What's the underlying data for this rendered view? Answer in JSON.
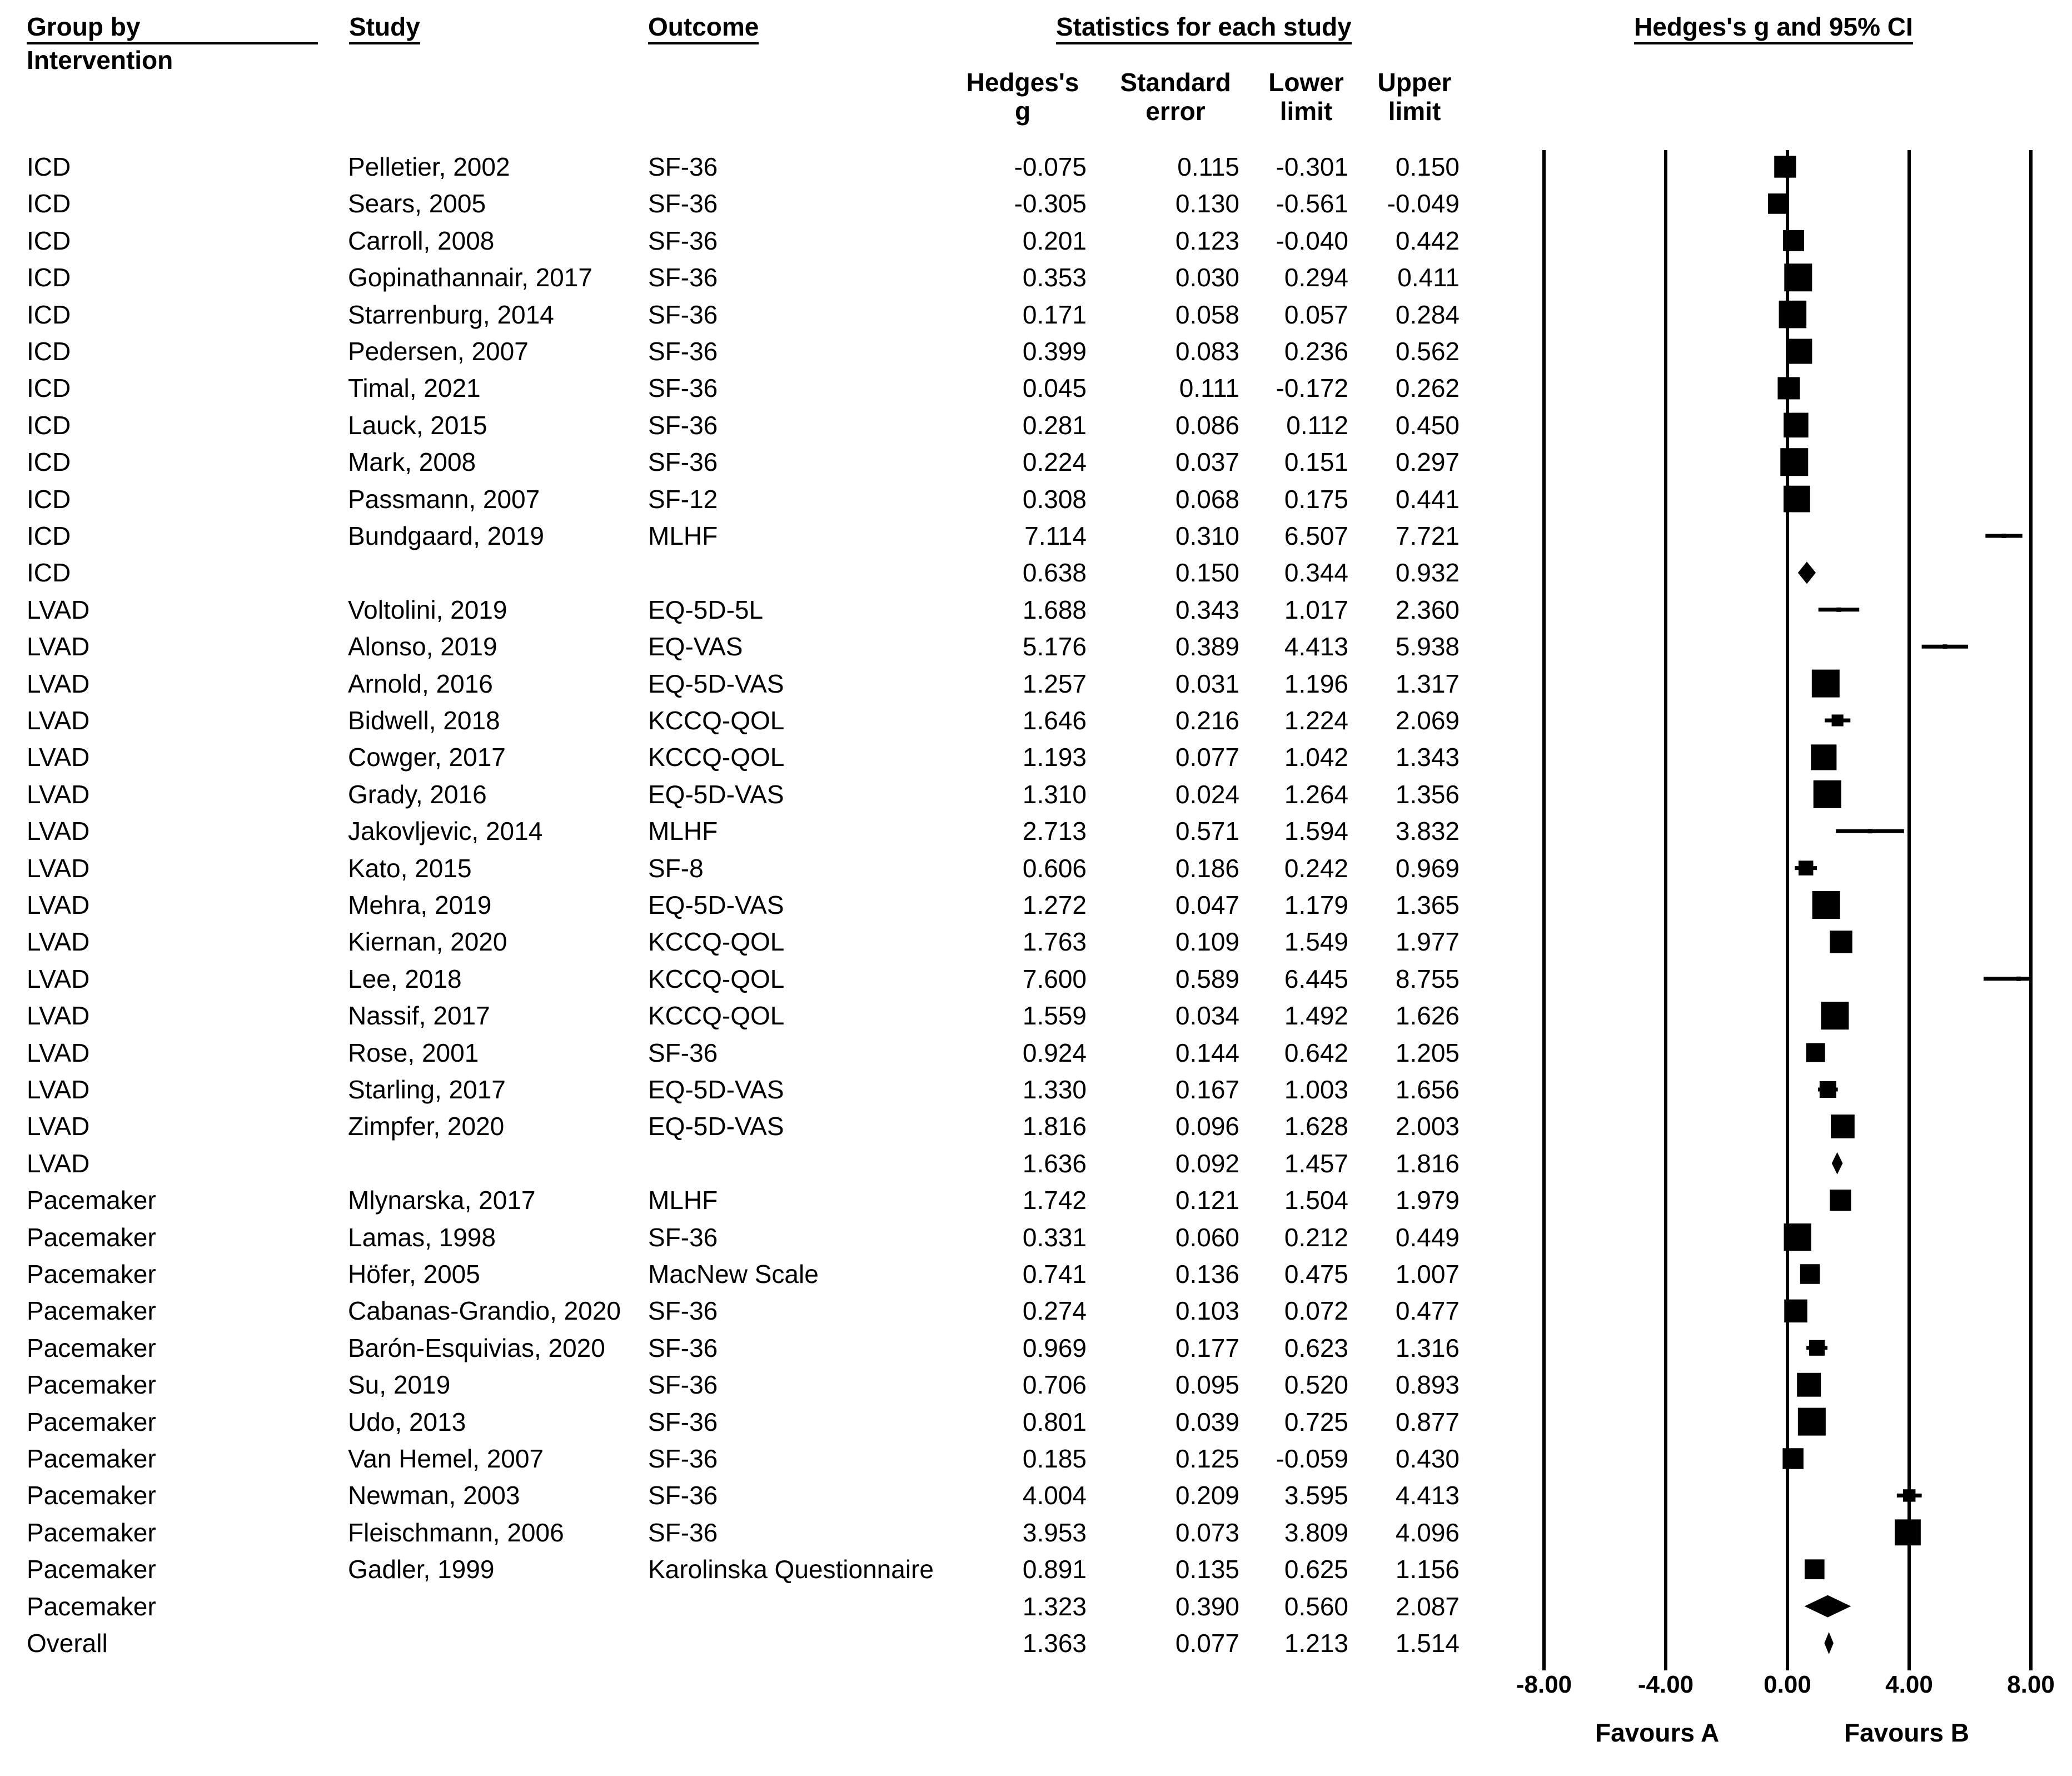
{
  "headers": {
    "group": "Group by",
    "group_sub": "Intervention",
    "study": "Study",
    "outcome": "Outcome",
    "stats": "Statistics for each study",
    "plot": "Hedges's g and 95% CI",
    "g_line1": "Hedges's",
    "g_line2": "g",
    "se_line1": "Standard",
    "se_line2": "error",
    "ll_line1": "Lower",
    "ll_line2": "limit",
    "ul_line1": "Upper",
    "ul_line2": "limit"
  },
  "footer": {
    "favours_a": "Favours A",
    "favours_b": "Favours B"
  },
  "chart_data": {
    "type": "forest",
    "title": "Hedges's g and 95% CI",
    "xlim": [
      -8,
      8
    ],
    "xticks": [
      -8,
      -4,
      0,
      4,
      8
    ],
    "xtick_labels": [
      "-8.00",
      "-4.00",
      "0.00",
      "4.00",
      "8.00"
    ],
    "xlabel_left": "Favours A",
    "xlabel_right": "Favours B",
    "rows": [
      {
        "group": "ICD",
        "study": "Pelletier, 2002",
        "outcome": "SF-36",
        "g": "-0.075",
        "se": "0.115",
        "lower": "-0.301",
        "upper": "0.150",
        "summary": false
      },
      {
        "group": "ICD",
        "study": "Sears, 2005",
        "outcome": "SF-36",
        "g": "-0.305",
        "se": "0.130",
        "lower": "-0.561",
        "upper": "-0.049",
        "summary": false
      },
      {
        "group": "ICD",
        "study": "Carroll, 2008",
        "outcome": "SF-36",
        "g": "0.201",
        "se": "0.123",
        "lower": "-0.040",
        "upper": "0.442",
        "summary": false
      },
      {
        "group": "ICD",
        "study": "Gopinathannair, 2017",
        "outcome": "SF-36",
        "g": "0.353",
        "se": "0.030",
        "lower": "0.294",
        "upper": "0.411",
        "summary": false
      },
      {
        "group": "ICD",
        "study": "Starrenburg, 2014",
        "outcome": "SF-36",
        "g": "0.171",
        "se": "0.058",
        "lower": "0.057",
        "upper": "0.284",
        "summary": false
      },
      {
        "group": "ICD",
        "study": "Pedersen, 2007",
        "outcome": "SF-36",
        "g": "0.399",
        "se": "0.083",
        "lower": "0.236",
        "upper": "0.562",
        "summary": false
      },
      {
        "group": "ICD",
        "study": "Timal, 2021",
        "outcome": "SF-36",
        "g": "0.045",
        "se": "0.111",
        "lower": "-0.172",
        "upper": "0.262",
        "summary": false
      },
      {
        "group": "ICD",
        "study": "Lauck, 2015",
        "outcome": "SF-36",
        "g": "0.281",
        "se": "0.086",
        "lower": "0.112",
        "upper": "0.450",
        "summary": false
      },
      {
        "group": "ICD",
        "study": "Mark, 2008",
        "outcome": "SF-36",
        "g": "0.224",
        "se": "0.037",
        "lower": "0.151",
        "upper": "0.297",
        "summary": false
      },
      {
        "group": "ICD",
        "study": "Passmann, 2007",
        "outcome": "SF-12",
        "g": "0.308",
        "se": "0.068",
        "lower": "0.175",
        "upper": "0.441",
        "summary": false
      },
      {
        "group": "ICD",
        "study": "Bundgaard, 2019",
        "outcome": "MLHF",
        "g": "7.114",
        "se": "0.310",
        "lower": "6.507",
        "upper": "7.721",
        "summary": false
      },
      {
        "group": "ICD",
        "study": "",
        "outcome": "",
        "g": "0.638",
        "se": "0.150",
        "lower": "0.344",
        "upper": "0.932",
        "summary": true
      },
      {
        "group": "LVAD",
        "study": "Voltolini, 2019",
        "outcome": "EQ-5D-5L",
        "g": "1.688",
        "se": "0.343",
        "lower": "1.017",
        "upper": "2.360",
        "summary": false
      },
      {
        "group": "LVAD",
        "study": "Alonso, 2019",
        "outcome": "EQ-VAS",
        "g": "5.176",
        "se": "0.389",
        "lower": "4.413",
        "upper": "5.938",
        "summary": false
      },
      {
        "group": "LVAD",
        "study": "Arnold, 2016",
        "outcome": "EQ-5D-VAS",
        "g": "1.257",
        "se": "0.031",
        "lower": "1.196",
        "upper": "1.317",
        "summary": false
      },
      {
        "group": "LVAD",
        "study": "Bidwell, 2018",
        "outcome": "KCCQ-QOL",
        "g": "1.646",
        "se": "0.216",
        "lower": "1.224",
        "upper": "2.069",
        "summary": false
      },
      {
        "group": "LVAD",
        "study": "Cowger, 2017",
        "outcome": "KCCQ-QOL",
        "g": "1.193",
        "se": "0.077",
        "lower": "1.042",
        "upper": "1.343",
        "summary": false
      },
      {
        "group": "LVAD",
        "study": "Grady, 2016",
        "outcome": "EQ-5D-VAS",
        "g": "1.310",
        "se": "0.024",
        "lower": "1.264",
        "upper": "1.356",
        "summary": false
      },
      {
        "group": "LVAD",
        "study": "Jakovljevic, 2014",
        "outcome": "MLHF",
        "g": "2.713",
        "se": "0.571",
        "lower": "1.594",
        "upper": "3.832",
        "summary": false
      },
      {
        "group": "LVAD",
        "study": "Kato, 2015",
        "outcome": "SF-8",
        "g": "0.606",
        "se": "0.186",
        "lower": "0.242",
        "upper": "0.969",
        "summary": false
      },
      {
        "group": "LVAD",
        "study": "Mehra, 2019",
        "outcome": "EQ-5D-VAS",
        "g": "1.272",
        "se": "0.047",
        "lower": "1.179",
        "upper": "1.365",
        "summary": false
      },
      {
        "group": "LVAD",
        "study": "Kiernan, 2020",
        "outcome": "KCCQ-QOL",
        "g": "1.763",
        "se": "0.109",
        "lower": "1.549",
        "upper": "1.977",
        "summary": false
      },
      {
        "group": "LVAD",
        "study": "Lee, 2018",
        "outcome": "KCCQ-QOL",
        "g": "7.600",
        "se": "0.589",
        "lower": "6.445",
        "upper": "8.755",
        "summary": false
      },
      {
        "group": "LVAD",
        "study": "Nassif, 2017",
        "outcome": "KCCQ-QOL",
        "g": "1.559",
        "se": "0.034",
        "lower": "1.492",
        "upper": "1.626",
        "summary": false
      },
      {
        "group": "LVAD",
        "study": "Rose, 2001",
        "outcome": "SF-36",
        "g": "0.924",
        "se": "0.144",
        "lower": "0.642",
        "upper": "1.205",
        "summary": false
      },
      {
        "group": "LVAD",
        "study": "Starling, 2017",
        "outcome": "EQ-5D-VAS",
        "g": "1.330",
        "se": "0.167",
        "lower": "1.003",
        "upper": "1.656",
        "summary": false
      },
      {
        "group": "LVAD",
        "study": "Zimpfer, 2020",
        "outcome": "EQ-5D-VAS",
        "g": "1.816",
        "se": "0.096",
        "lower": "1.628",
        "upper": "2.003",
        "summary": false
      },
      {
        "group": "LVAD",
        "study": "",
        "outcome": "",
        "g": "1.636",
        "se": "0.092",
        "lower": "1.457",
        "upper": "1.816",
        "summary": true
      },
      {
        "group": "Pacemaker",
        "study": "Mlynarska, 2017",
        "outcome": "MLHF",
        "g": "1.742",
        "se": "0.121",
        "lower": "1.504",
        "upper": "1.979",
        "summary": false
      },
      {
        "group": "Pacemaker",
        "study": "Lamas, 1998",
        "outcome": "SF-36",
        "g": "0.331",
        "se": "0.060",
        "lower": "0.212",
        "upper": "0.449",
        "summary": false
      },
      {
        "group": "Pacemaker",
        "study": "Höfer, 2005",
        "outcome": "MacNew Scale",
        "g": "0.741",
        "se": "0.136",
        "lower": "0.475",
        "upper": "1.007",
        "summary": false
      },
      {
        "group": "Pacemaker",
        "study": "Cabanas-Grandio, 2020",
        "outcome": "SF-36",
        "g": "0.274",
        "se": "0.103",
        "lower": "0.072",
        "upper": "0.477",
        "summary": false
      },
      {
        "group": "Pacemaker",
        "study": "Barón-Esquivias, 2020",
        "outcome": "SF-36",
        "g": "0.969",
        "se": "0.177",
        "lower": "0.623",
        "upper": "1.316",
        "summary": false
      },
      {
        "group": "Pacemaker",
        "study": "Su, 2019",
        "outcome": "SF-36",
        "g": "0.706",
        "se": "0.095",
        "lower": "0.520",
        "upper": "0.893",
        "summary": false
      },
      {
        "group": "Pacemaker",
        "study": "Udo, 2013",
        "outcome": "SF-36",
        "g": "0.801",
        "se": "0.039",
        "lower": "0.725",
        "upper": "0.877",
        "summary": false
      },
      {
        "group": "Pacemaker",
        "study": "Van Hemel, 2007",
        "outcome": "SF-36",
        "g": "0.185",
        "se": "0.125",
        "lower": "-0.059",
        "upper": "0.430",
        "summary": false
      },
      {
        "group": "Pacemaker",
        "study": "Newman, 2003",
        "outcome": "SF-36",
        "g": "4.004",
        "se": "0.209",
        "lower": "3.595",
        "upper": "4.413",
        "summary": false
      },
      {
        "group": "Pacemaker",
        "study": "Fleischmann, 2006",
        "outcome": "SF-36",
        "g": "3.953",
        "se": "0.073",
        "lower": "3.809",
        "upper": "4.096",
        "summary": false
      },
      {
        "group": "Pacemaker",
        "study": "Gadler, 1999",
        "outcome": "Karolinska Questionnaire",
        "g": "0.891",
        "se": "0.135",
        "lower": "0.625",
        "upper": "1.156",
        "summary": false
      },
      {
        "group": "Pacemaker",
        "study": "",
        "outcome": "",
        "g": "1.323",
        "se": "0.390",
        "lower": "0.560",
        "upper": "2.087",
        "summary": true
      },
      {
        "group": "Overall",
        "study": "",
        "outcome": "",
        "g": "1.363",
        "se": "0.077",
        "lower": "1.213",
        "upper": "1.514",
        "summary": true
      }
    ]
  }
}
